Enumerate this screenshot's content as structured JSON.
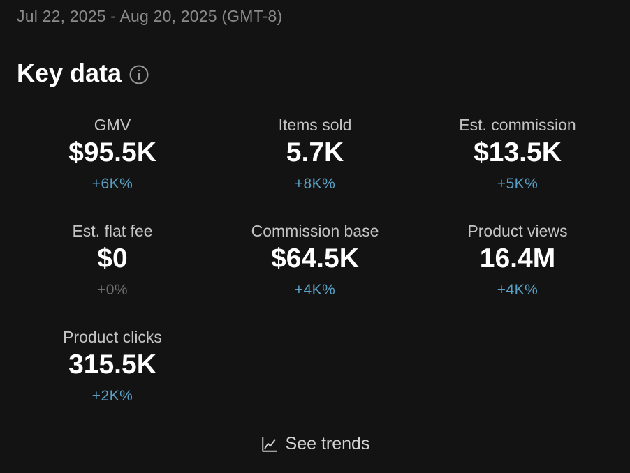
{
  "header": {
    "date_range": "Jul 22, 2025 - Aug 20, 2025 (GMT-8)"
  },
  "section": {
    "title": "Key data",
    "info_icon": "info-icon"
  },
  "metrics": [
    {
      "label": "GMV",
      "value": "$95.5K",
      "change": "+6K%"
    },
    {
      "label": "Items sold",
      "value": "5.7K",
      "change": "+8K%"
    },
    {
      "label": "Est. commission",
      "value": "$13.5K",
      "change": "+5K%"
    },
    {
      "label": "Est. flat fee",
      "value": "$0",
      "change": "+0%"
    },
    {
      "label": "Commission base",
      "value": "$64.5K",
      "change": "+4K%"
    },
    {
      "label": "Product views",
      "value": "16.4M",
      "change": "+4K%"
    },
    {
      "label": "Product clicks",
      "value": "315.5K",
      "change": "+2K%"
    }
  ],
  "footer": {
    "see_trends_label": "See trends",
    "icon": "line-chart-icon"
  },
  "colors": {
    "background": "#131313",
    "positive_change": "#5aa0c4",
    "neutral_change": "#6e6e6e"
  }
}
